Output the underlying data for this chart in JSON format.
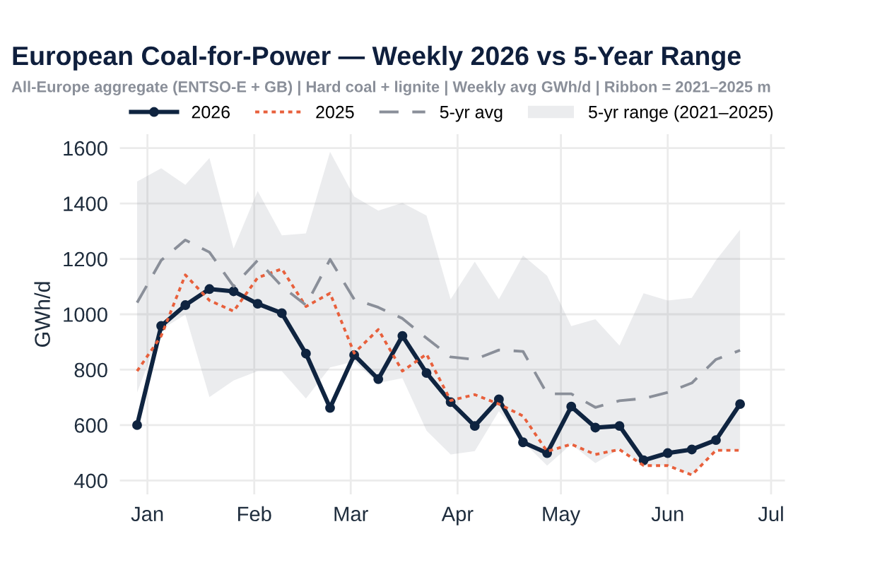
{
  "chart_data": {
    "type": "line",
    "title": "European Coal-for-Power — Weekly 2026 vs 5-Year Range",
    "subtitle": "All-Europe aggregate (ENTSO-E + GB) | Hard coal + lignite | Weekly avg GWh/d | Ribbon = 2021–2025 m",
    "ylabel": "GWh/d",
    "annotations": [
      "5-yr range (2021–2025)"
    ],
    "x": [
      "2025-12-29",
      "2026-01-05",
      "2026-01-12",
      "2026-01-19",
      "2026-01-26",
      "2026-02-02",
      "2026-02-09",
      "2026-02-16",
      "2026-02-23",
      "2026-03-02",
      "2026-03-09",
      "2026-03-16",
      "2026-03-23",
      "2026-03-30",
      "2026-04-06",
      "2026-04-13",
      "2026-04-20",
      "2026-04-27",
      "2026-05-04",
      "2026-05-11",
      "2026-05-18",
      "2026-05-25",
      "2026-06-01",
      "2026-06-08",
      "2026-06-15",
      "2026-06-22"
    ],
    "series": [
      {
        "name": "2026",
        "color": "#0f2440",
        "marker": "circle",
        "line_style": "solid",
        "values": [
          600,
          958,
          1033,
          1091,
          1083,
          1038,
          1004,
          858,
          662,
          853,
          766,
          922,
          788,
          683,
          597,
          693,
          538,
          499,
          667,
          591,
          597,
          473,
          499,
          512,
          546,
          676
        ]
      },
      {
        "name": "2025",
        "color": "#e8603c",
        "marker": "none",
        "line_style": "dotted",
        "values": [
          795,
          922,
          1142,
          1050,
          1011,
          1132,
          1164,
          1028,
          1076,
          860,
          945,
          795,
          856,
          689,
          710,
          676,
          633,
          505,
          531,
          494,
          512,
          454,
          454,
          420,
          509,
          509
        ]
      },
      {
        "name": "5-yr avg",
        "color": "#8a8f99",
        "marker": "none",
        "line_style": "dashed",
        "values": [
          1042,
          1195,
          1268,
          1224,
          1101,
          1195,
          1101,
          1033,
          1198,
          1054,
          1025,
          985,
          914,
          846,
          837,
          871,
          866,
          713,
          713,
          664,
          688,
          696,
          718,
          752,
          837,
          870
        ],
        "lower": [
          718,
          945,
          999,
          701,
          761,
          795,
          795,
          696,
          808,
          829,
          752,
          769,
          580,
          494,
          506,
          650,
          540,
          454,
          531,
          463,
          514,
          454,
          454,
          420,
          509,
          509
        ],
        "upper": [
          1479,
          1527,
          1467,
          1564,
          1237,
          1445,
          1285,
          1292,
          1586,
          1425,
          1374,
          1402,
          1356,
          1054,
          1190,
          1054,
          1212,
          1139,
          957,
          982,
          887,
          1076,
          1050,
          1059,
          1195,
          1305
        ]
      }
    ],
    "xlim": [
      "2025-12-24",
      "2026-07-05"
    ],
    "xticks": [
      {
        "value": "2026-01-01",
        "label": "Jan"
      },
      {
        "value": "2026-02-01",
        "label": "Feb"
      },
      {
        "value": "2026-03-01",
        "label": "Mar"
      },
      {
        "value": "2026-04-01",
        "label": "Apr"
      },
      {
        "value": "2026-05-01",
        "label": "May"
      },
      {
        "value": "2026-06-01",
        "label": "Jun"
      },
      {
        "value": "2026-07-01",
        "label": "Jul"
      }
    ],
    "ylim": [
      350,
      1650
    ],
    "yticks": [
      400,
      600,
      800,
      1000,
      1200,
      1400,
      1600
    ],
    "grid": true,
    "legend": "top"
  }
}
